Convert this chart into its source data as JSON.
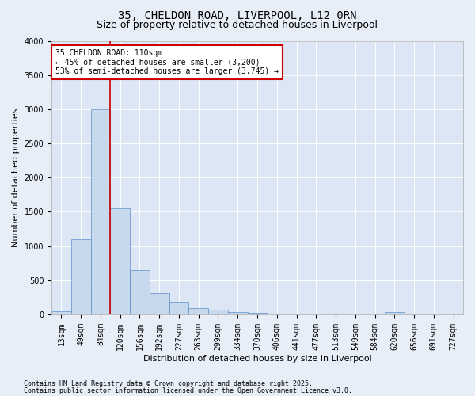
{
  "title_line1": "35, CHELDON ROAD, LIVERPOOL, L12 0RN",
  "title_line2": "Size of property relative to detached houses in Liverpool",
  "xlabel": "Distribution of detached houses by size in Liverpool",
  "ylabel": "Number of detached properties",
  "categories": [
    "13sqm",
    "49sqm",
    "84sqm",
    "120sqm",
    "156sqm",
    "192sqm",
    "227sqm",
    "263sqm",
    "299sqm",
    "334sqm",
    "370sqm",
    "406sqm",
    "441sqm",
    "477sqm",
    "513sqm",
    "549sqm",
    "584sqm",
    "620sqm",
    "656sqm",
    "691sqm",
    "727sqm"
  ],
  "values": [
    50,
    1100,
    3000,
    1550,
    650,
    310,
    190,
    95,
    65,
    40,
    20,
    10,
    5,
    2,
    0,
    0,
    0,
    40,
    0,
    0,
    0
  ],
  "bar_color": "#c8d9ee",
  "bar_edge_color": "#5b8fc9",
  "vline_x_idx": 3,
  "vline_color": "#cc0000",
  "annotation_text": "35 CHELDON ROAD: 110sqm\n← 45% of detached houses are smaller (3,200)\n53% of semi-detached houses are larger (3,745) →",
  "annotation_box_color": "#ffffff",
  "annotation_box_edge": "#cc0000",
  "ylim": [
    0,
    4000
  ],
  "yticks": [
    0,
    500,
    1000,
    1500,
    2000,
    2500,
    3000,
    3500,
    4000
  ],
  "fig_bg_color": "#e8eef8",
  "plot_bg_color": "#dce6f5",
  "footer_line1": "Contains HM Land Registry data © Crown copyright and database right 2025.",
  "footer_line2": "Contains public sector information licensed under the Open Government Licence v3.0.",
  "title_fontsize": 10,
  "subtitle_fontsize": 9,
  "axis_label_fontsize": 8,
  "tick_fontsize": 7,
  "annotation_fontsize": 7,
  "footer_fontsize": 6
}
